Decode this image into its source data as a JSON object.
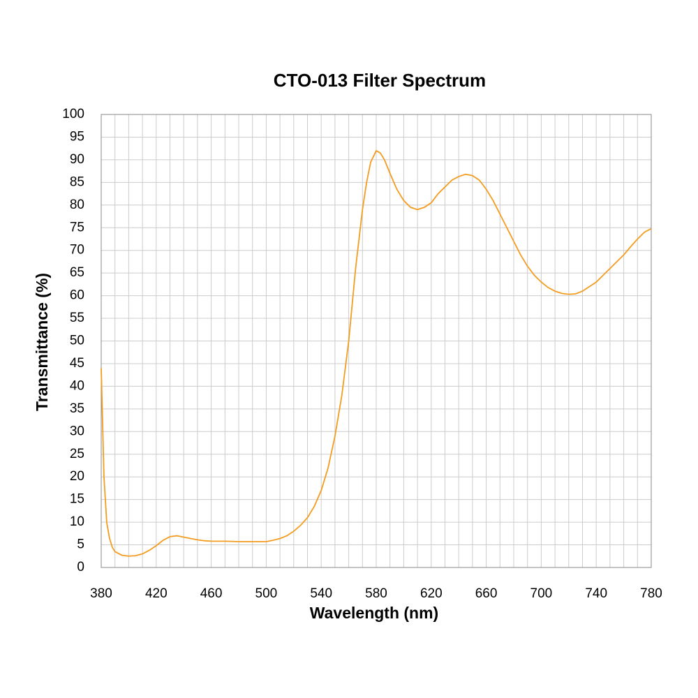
{
  "chart_data": {
    "type": "line",
    "title": "CTO-013 Filter Spectrum",
    "x_label": "Wavelength (nm)",
    "y_label": "Transmittance (%)",
    "xlim": [
      380,
      780
    ],
    "ylim": [
      0,
      100
    ],
    "xticks": [
      380,
      420,
      460,
      500,
      540,
      580,
      620,
      660,
      700,
      740,
      780
    ],
    "xminor": [
      390,
      400,
      410,
      430,
      440,
      450,
      470,
      480,
      490,
      510,
      520,
      530,
      550,
      560,
      570,
      590,
      600,
      610,
      630,
      640,
      650,
      670,
      680,
      690,
      710,
      720,
      730,
      750,
      760,
      770
    ],
    "yticks": [
      0,
      5,
      10,
      15,
      20,
      25,
      30,
      35,
      40,
      45,
      50,
      55,
      60,
      65,
      70,
      75,
      80,
      85,
      90,
      95,
      100
    ],
    "grid": true,
    "x": [
      380,
      382,
      384,
      386,
      388,
      390,
      395,
      400,
      405,
      410,
      415,
      420,
      425,
      430,
      435,
      440,
      445,
      450,
      455,
      460,
      470,
      480,
      490,
      500,
      505,
      510,
      515,
      520,
      525,
      530,
      535,
      540,
      545,
      550,
      555,
      560,
      565,
      570,
      573,
      576,
      580,
      583,
      586,
      590,
      595,
      600,
      605,
      610,
      615,
      620,
      625,
      630,
      635,
      640,
      645,
      650,
      655,
      660,
      665,
      670,
      675,
      680,
      685,
      690,
      695,
      700,
      705,
      710,
      715,
      720,
      725,
      730,
      735,
      740,
      745,
      750,
      755,
      760,
      765,
      770,
      775,
      780
    ],
    "series": [
      {
        "name": "CTO-013",
        "color": "#f39c1f",
        "values": [
          44,
          20,
          10,
          6.5,
          4.5,
          3.5,
          2.7,
          2.5,
          2.6,
          3.0,
          3.8,
          4.8,
          6.0,
          6.8,
          7.0,
          6.7,
          6.4,
          6.1,
          5.9,
          5.8,
          5.8,
          5.7,
          5.7,
          5.7,
          6.0,
          6.4,
          7.0,
          8.0,
          9.3,
          11,
          13.5,
          17,
          22,
          29,
          38,
          50,
          66,
          79,
          85,
          89.5,
          92,
          91.5,
          90,
          87,
          83.5,
          81,
          79.5,
          79,
          79.5,
          80.5,
          82.5,
          84,
          85.5,
          86.3,
          86.8,
          86.5,
          85.5,
          83.5,
          81,
          78,
          75,
          72,
          69,
          66.5,
          64.5,
          63,
          61.8,
          61,
          60.5,
          60.3,
          60.4,
          61,
          62,
          63,
          64.5,
          66,
          67.5,
          69,
          70.8,
          72.5,
          74,
          74.8
        ]
      }
    ]
  }
}
